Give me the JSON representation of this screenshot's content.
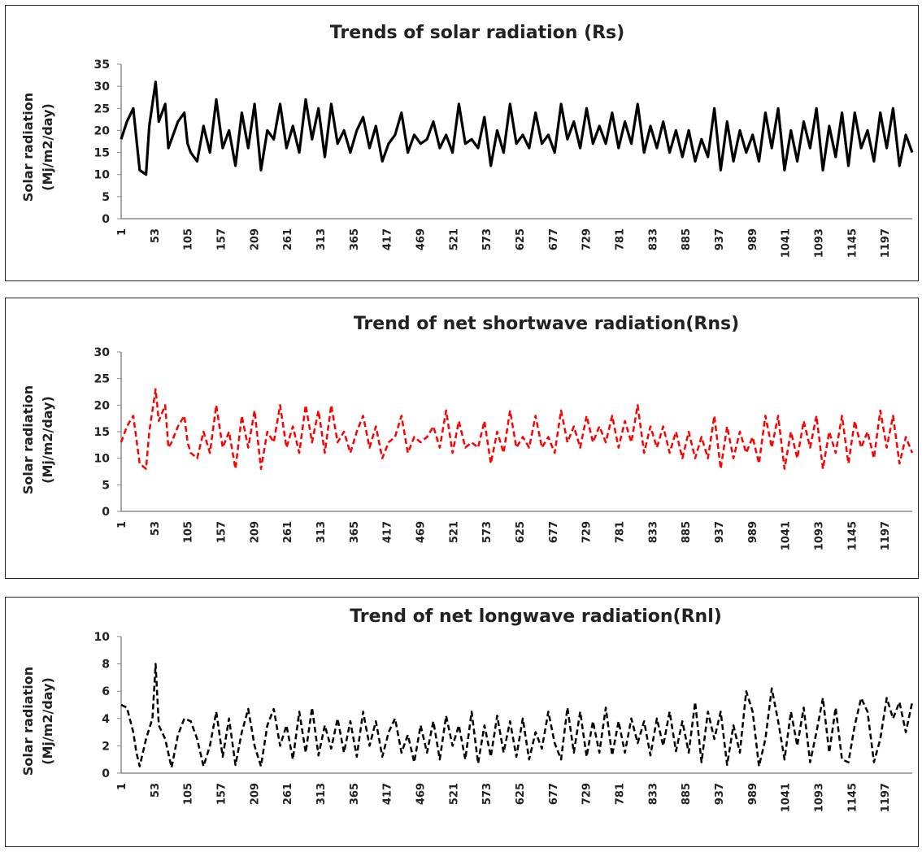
{
  "chart_data": [
    {
      "type": "line",
      "title": "Trends of solar radiation (Rs)",
      "ylabel": [
        "Solar radiation",
        "(Mj/m2/day)"
      ],
      "ylim": [
        0,
        35
      ],
      "yticks": [
        0,
        5,
        10,
        15,
        20,
        25,
        30,
        35
      ],
      "xticks": [
        "1",
        "53",
        "105",
        "157",
        "209",
        "261",
        "313",
        "365",
        "417",
        "469",
        "521",
        "573",
        "625",
        "677",
        "729",
        "781",
        "833",
        "885",
        "937",
        "989",
        "1041",
        "1093",
        "1145",
        "1197"
      ],
      "xrange": [
        1,
        1240
      ],
      "color": "#000000",
      "dashed": false,
      "series": [
        {
          "x": [
            1,
            10,
            20,
            30,
            40,
            45,
            55,
            60,
            70,
            75,
            80,
            90,
            100,
            105,
            110,
            120,
            130,
            140,
            150,
            160,
            170,
            180,
            190,
            200,
            210,
            220,
            230,
            240,
            250,
            260,
            270,
            280,
            290,
            300,
            310,
            320,
            330,
            340,
            350,
            360,
            370,
            380,
            390,
            400,
            410,
            420,
            430,
            440,
            450,
            460,
            470,
            480,
            490,
            500,
            510,
            520,
            530,
            540,
            550,
            560,
            570,
            580,
            590,
            600,
            610,
            620,
            630,
            640,
            650,
            660,
            670,
            680,
            690,
            700,
            710,
            720,
            730,
            740,
            750,
            760,
            770,
            780,
            790,
            800,
            810,
            820,
            830,
            840,
            850,
            860,
            870,
            880,
            890,
            900,
            910,
            920,
            930,
            940,
            950,
            960,
            970,
            980,
            990,
            1000,
            1010,
            1020,
            1030,
            1040,
            1050,
            1060,
            1070,
            1080,
            1090,
            1100,
            1110,
            1120,
            1130,
            1140,
            1150,
            1160,
            1170,
            1180,
            1190,
            1200,
            1210,
            1220,
            1230,
            1240
          ],
          "y": [
            18,
            22,
            25,
            11,
            10,
            21,
            31,
            22,
            26,
            16,
            18,
            22,
            24,
            17,
            15,
            13,
            21,
            15,
            27,
            16,
            20,
            12,
            24,
            16,
            26,
            11,
            20,
            18,
            26,
            16,
            21,
            15,
            27,
            18,
            25,
            14,
            26,
            17,
            20,
            15,
            20,
            23,
            16,
            21,
            13,
            17,
            19,
            24,
            15,
            19,
            17,
            18,
            22,
            16,
            19,
            15,
            26,
            17,
            18,
            16,
            23,
            12,
            20,
            15,
            26,
            17,
            19,
            16,
            24,
            17,
            19,
            15,
            26,
            18,
            22,
            16,
            25,
            17,
            21,
            17,
            24,
            16,
            22,
            17,
            26,
            15,
            21,
            16,
            22,
            15,
            20,
            14,
            20,
            13,
            18,
            14,
            25,
            11,
            22,
            13,
            20,
            15,
            19,
            13,
            24,
            16,
            25,
            11,
            20,
            13,
            22,
            16,
            25,
            11,
            21,
            14,
            24,
            12,
            24,
            16,
            20,
            13,
            24,
            16,
            25,
            12,
            19,
            15
          ]
        }
      ]
    },
    {
      "type": "line",
      "title": "Trend of net shortwave radiation(Rns)",
      "ylabel": [
        "Solar radiation",
        "(Mj/m2/day)"
      ],
      "ylim": [
        0,
        30
      ],
      "yticks": [
        0,
        5,
        10,
        15,
        20,
        25,
        30
      ],
      "xticks": [
        "1",
        "53",
        "105",
        "157",
        "209",
        "261",
        "313",
        "365",
        "417",
        "469",
        "521",
        "573",
        "625",
        "677",
        "729",
        "781",
        "833",
        "885",
        "937",
        "989",
        "1041",
        "1093",
        "1145",
        "1197"
      ],
      "xrange": [
        1,
        1240
      ],
      "color": "#ff0000",
      "dashed": true,
      "series": [
        {
          "x": [
            1,
            10,
            20,
            30,
            40,
            45,
            55,
            60,
            70,
            75,
            80,
            90,
            100,
            105,
            110,
            120,
            130,
            140,
            150,
            160,
            170,
            180,
            190,
            200,
            210,
            220,
            230,
            240,
            250,
            260,
            270,
            280,
            290,
            300,
            310,
            320,
            330,
            340,
            350,
            360,
            370,
            380,
            390,
            400,
            410,
            420,
            430,
            440,
            450,
            460,
            470,
            480,
            490,
            500,
            510,
            520,
            530,
            540,
            550,
            560,
            570,
            580,
            590,
            600,
            610,
            620,
            630,
            640,
            650,
            660,
            670,
            680,
            690,
            700,
            710,
            720,
            730,
            740,
            750,
            760,
            770,
            780,
            790,
            800,
            810,
            820,
            830,
            840,
            850,
            860,
            870,
            880,
            890,
            900,
            910,
            920,
            930,
            940,
            950,
            960,
            970,
            980,
            990,
            1000,
            1010,
            1020,
            1030,
            1040,
            1050,
            1060,
            1070,
            1080,
            1090,
            1100,
            1110,
            1120,
            1130,
            1140,
            1150,
            1160,
            1170,
            1180,
            1190,
            1200,
            1210,
            1220,
            1230,
            1240
          ],
          "y": [
            13,
            16,
            18,
            9,
            8,
            15,
            23,
            17,
            20,
            12,
            13,
            16,
            18,
            13,
            11,
            10,
            15,
            11,
            20,
            12,
            15,
            8,
            18,
            12,
            19,
            8,
            15,
            13,
            20,
            12,
            16,
            11,
            20,
            13,
            19,
            11,
            20,
            13,
            15,
            11,
            15,
            18,
            12,
            16,
            10,
            13,
            14,
            18,
            11,
            14,
            13,
            14,
            16,
            12,
            19,
            11,
            17,
            12,
            13,
            12,
            17,
            9,
            15,
            11,
            19,
            12,
            14,
            12,
            18,
            12,
            14,
            11,
            19,
            13,
            16,
            12,
            18,
            13,
            16,
            13,
            18,
            12,
            17,
            13,
            20,
            11,
            16,
            12,
            16,
            11,
            15,
            10,
            15,
            10,
            14,
            10,
            18,
            8,
            16,
            10,
            15,
            11,
            14,
            9,
            18,
            12,
            18,
            8,
            15,
            10,
            17,
            12,
            18,
            8,
            15,
            11,
            18,
            9,
            17,
            12,
            15,
            10,
            19,
            12,
            18,
            9,
            14,
            11
          ]
        }
      ]
    },
    {
      "type": "line",
      "title": "Trend of net longwave radiation(Rnl)",
      "ylabel": [
        "Solar radiation",
        "(Mj/m2/day)"
      ],
      "ylim": [
        0,
        10
      ],
      "yticks": [
        0,
        2,
        4,
        6,
        8,
        10
      ],
      "xticks": [
        "1",
        "53",
        "105",
        "157",
        "209",
        "261",
        "313",
        "365",
        "417",
        "469",
        "521",
        "573",
        "625",
        "677",
        "729",
        "781",
        "833",
        "885",
        "937",
        "989",
        "1041",
        "1093",
        "1145",
        "1197"
      ],
      "xrange": [
        1,
        1240
      ],
      "color": "#000000",
      "dashed": true,
      "series": [
        {
          "x": [
            1,
            10,
            20,
            25,
            30,
            40,
            50,
            55,
            60,
            70,
            80,
            90,
            100,
            110,
            120,
            130,
            140,
            150,
            160,
            170,
            180,
            190,
            200,
            210,
            220,
            230,
            240,
            250,
            260,
            270,
            280,
            290,
            300,
            310,
            320,
            330,
            340,
            350,
            360,
            370,
            380,
            390,
            400,
            410,
            420,
            430,
            440,
            450,
            460,
            470,
            480,
            490,
            500,
            510,
            520,
            530,
            540,
            550,
            560,
            570,
            580,
            590,
            600,
            610,
            620,
            630,
            640,
            650,
            660,
            670,
            680,
            690,
            700,
            710,
            720,
            730,
            740,
            750,
            760,
            770,
            780,
            790,
            800,
            810,
            820,
            830,
            840,
            850,
            860,
            870,
            880,
            890,
            900,
            910,
            920,
            930,
            940,
            950,
            960,
            970,
            980,
            990,
            1000,
            1010,
            1020,
            1030,
            1040,
            1050,
            1060,
            1070,
            1080,
            1090,
            1100,
            1110,
            1120,
            1130,
            1140,
            1150,
            1160,
            1170,
            1180,
            1190,
            1200,
            1210,
            1220,
            1230,
            1240
          ],
          "y": [
            5,
            4.8,
            3,
            1.5,
            0.5,
            2.5,
            4,
            8,
            3.5,
            2.5,
            0.4,
            2.8,
            4,
            3.8,
            2.5,
            0.5,
            2,
            4.5,
            1.2,
            4,
            0.6,
            3,
            4.7,
            2,
            0.5,
            3.5,
            4.7,
            2,
            3.5,
            1,
            4.5,
            1.5,
            4.8,
            1.3,
            3.5,
            1.8,
            4,
            1.5,
            3.8,
            1.2,
            4.5,
            2,
            3.8,
            1.2,
            3,
            4,
            1.5,
            2.8,
            0.8,
            3.5,
            1.5,
            3.8,
            1,
            4.2,
            2,
            3.5,
            1,
            4.5,
            0.7,
            3.5,
            1.2,
            4.2,
            1.5,
            3.8,
            1.2,
            4,
            1,
            3,
            1.8,
            4.5,
            2.2,
            1,
            4.8,
            1.5,
            4.5,
            1.2,
            3.8,
            1.5,
            4.8,
            1.3,
            3.8,
            1.5,
            4,
            2.2,
            3.8,
            1.3,
            4,
            2,
            4.5,
            1.6,
            3.8,
            1.5,
            5.2,
            0.8,
            4.5,
            2.5,
            4.5,
            0.6,
            3.5,
            1.5,
            6,
            4.5,
            0.5,
            2.5,
            6.2,
            3.8,
            1,
            4.5,
            2,
            4.8,
            0.8,
            3,
            5.5,
            1.5,
            4.8,
            1,
            0.8,
            3.5,
            5.5,
            4.5,
            0.8,
            2.5,
            5.5,
            4,
            5.2,
            3,
            5.2
          ]
        }
      ]
    }
  ]
}
